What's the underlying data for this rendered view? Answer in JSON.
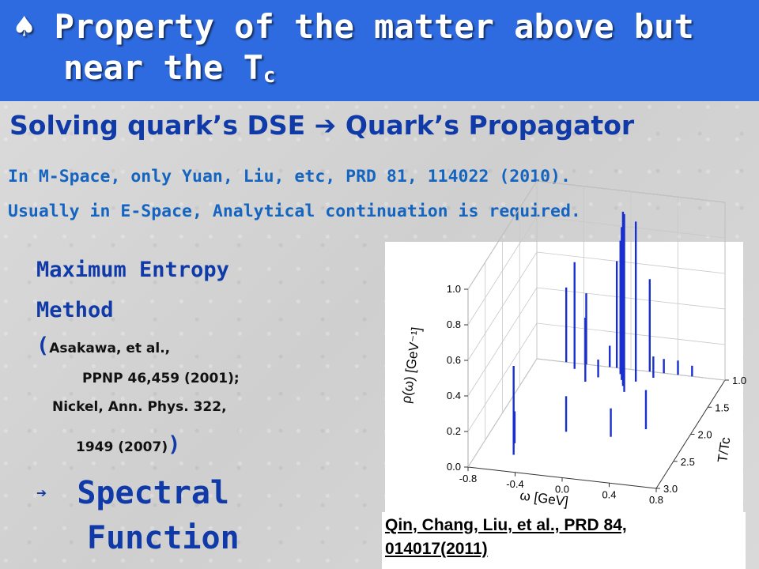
{
  "slide": {
    "title_bullet": "♠",
    "title_line1": "Property of the matter above but",
    "title_line2": "near the T",
    "title_sub": "c",
    "subtitle_left": "Solving quark’s DSE",
    "subtitle_arrow": "➔",
    "subtitle_right": "Quark’s Propagator",
    "info_line1": "In M-Space, only Yuan, Liu, etc, PRD 81, 114022 (2010).",
    "info_line2": "Usually in E-Space, Analytical continuation is required.",
    "mem_line1": "Maximum Entropy",
    "mem_line2": "Method",
    "paren_open": "(",
    "ref_1": "Asakawa, et al.,",
    "ref_2": "PPNP 46,459 (2001);",
    "ref_3": "Nickel, Ann. Phys. 322,",
    "ref_4": "1949 (2007)",
    "paren_close": ")",
    "spectral_arrow": "➔",
    "spectral_1": "Spectral",
    "spectral_2": "Function",
    "caption_1": "Qin, Chang, Liu, et al., PRD 84,",
    "caption_2": "014017(2011)"
  },
  "chart_data": {
    "type": "3d-bar",
    "xlabel": "ω [GeV]",
    "ylabel": "ρ(ω) [GeV⁻¹]",
    "zlabel": "T/Tc",
    "x_ticks": [
      "-0.8",
      "-0.4",
      "0.0",
      "0.4",
      "0.8"
    ],
    "y_ticks": [
      "0.0",
      "0.2",
      "0.4",
      "0.6",
      "0.8",
      "1.0"
    ],
    "z_ticks": [
      "1.0",
      "1.5",
      "2.0",
      "2.5",
      "3.0"
    ],
    "xlim": [
      -0.8,
      0.8
    ],
    "ylim": [
      0.0,
      1.0
    ],
    "zlim": [
      1.0,
      3.0
    ],
    "line_color": "#1a2fd0",
    "spikes": [
      {
        "omega": -0.55,
        "t": 1.0,
        "rho": 0.42
      },
      {
        "omega": -0.45,
        "t": 1.1,
        "rho": 0.6
      },
      {
        "omega": -0.38,
        "t": 1.0,
        "rho": 0.4
      },
      {
        "omega": -0.3,
        "t": 1.3,
        "rho": 0.36
      },
      {
        "omega": -0.22,
        "t": 1.2,
        "rho": 0.1
      },
      {
        "omega": -0.18,
        "t": 1.0,
        "rho": 0.12
      },
      {
        "omega": -0.12,
        "t": 1.0,
        "rho": 0.6
      },
      {
        "omega": -0.06,
        "t": 1.1,
        "rho": 0.75
      },
      {
        "omega": -0.02,
        "t": 1.2,
        "rho": 0.86
      },
      {
        "omega": 0.02,
        "t": 1.3,
        "rho": 0.98
      },
      {
        "omega": 0.06,
        "t": 1.4,
        "rho": 1.0
      },
      {
        "omega": 0.1,
        "t": 1.2,
        "rho": 0.9
      },
      {
        "omega": 0.16,
        "t": 1.0,
        "rho": 0.52
      },
      {
        "omega": 0.22,
        "t": 1.1,
        "rho": 0.12
      },
      {
        "omega": 0.28,
        "t": 1.0,
        "rho": 0.08
      },
      {
        "omega": 0.4,
        "t": 1.0,
        "rho": 0.08
      },
      {
        "omega": 0.52,
        "t": 1.0,
        "rho": 0.06
      },
      {
        "omega": -0.5,
        "t": 2.7,
        "rho": 0.5
      },
      {
        "omega": -0.55,
        "t": 2.5,
        "rho": 0.18
      },
      {
        "omega": -0.2,
        "t": 2.2,
        "rho": 0.2
      },
      {
        "omega": 0.18,
        "t": 2.2,
        "rho": 0.16
      },
      {
        "omega": 0.42,
        "t": 2.0,
        "rho": 0.22
      }
    ]
  }
}
